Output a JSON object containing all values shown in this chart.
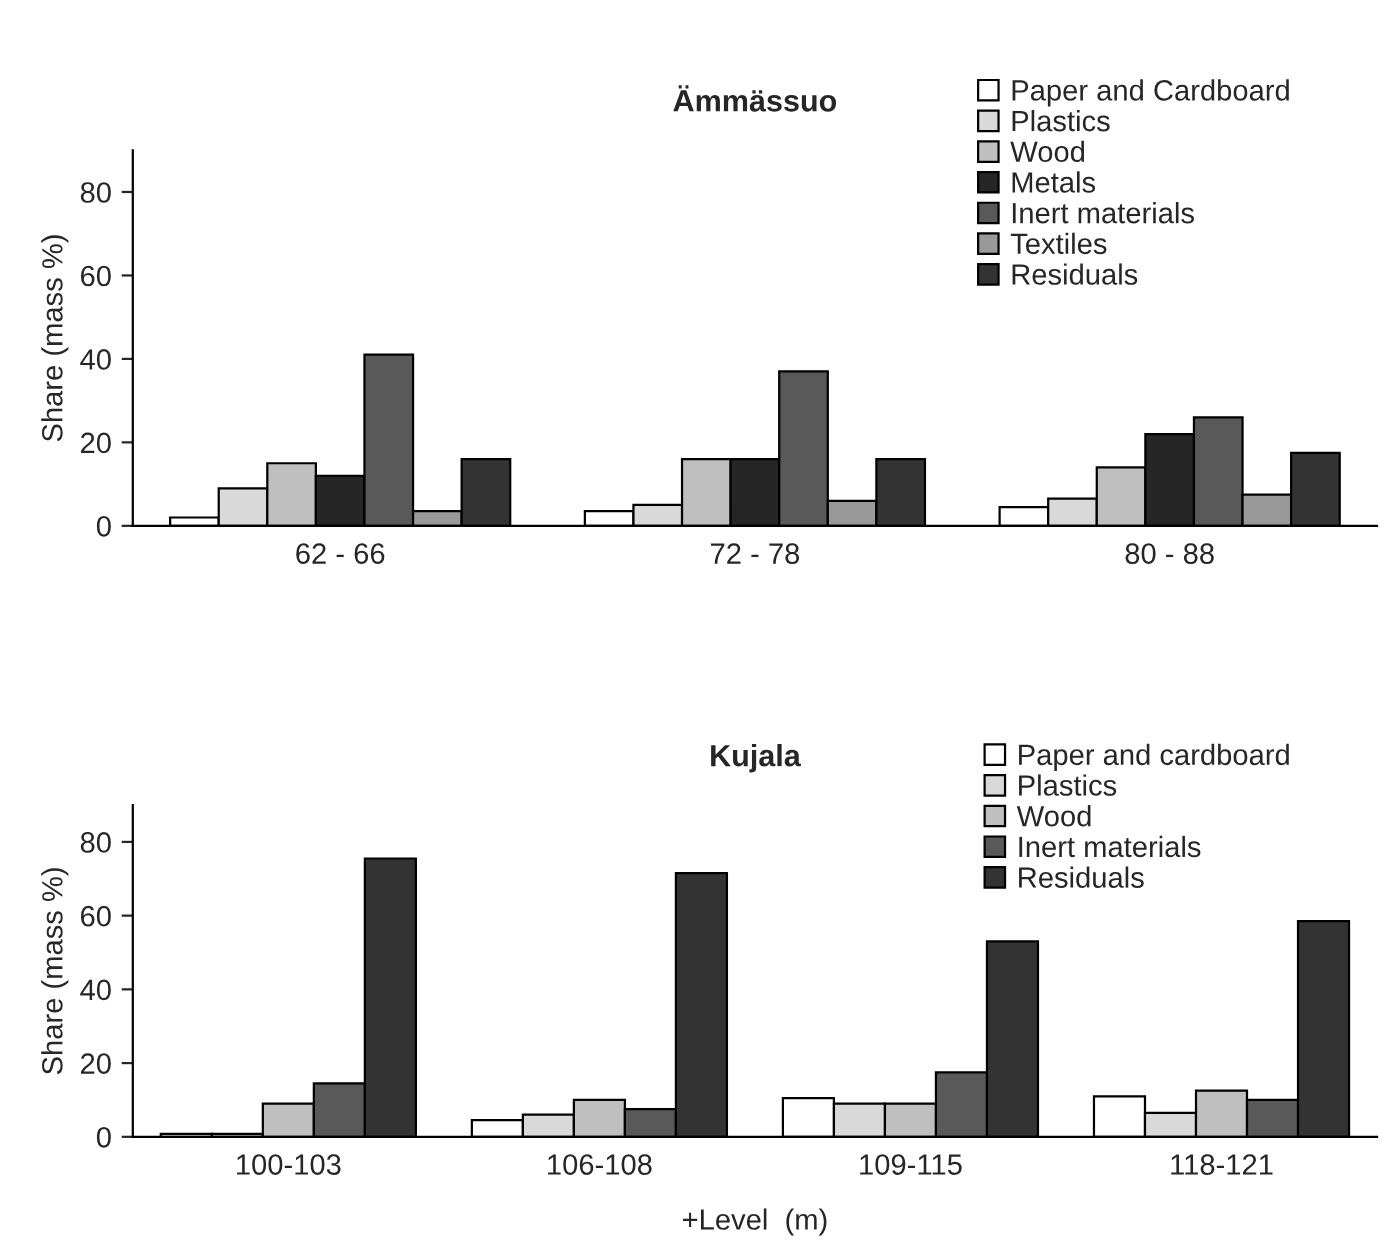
{
  "chart_data": [
    {
      "type": "bar",
      "title": "Ämmässuo",
      "ylabel": "Share (mass %)",
      "categories": [
        "62 - 66",
        "72 - 78",
        "80 - 88"
      ],
      "ylim": [
        0,
        90
      ],
      "yticks": [
        0,
        20,
        40,
        60,
        80
      ],
      "legend": "top right",
      "grid": false,
      "series": [
        {
          "name": "Paper and Cardboard",
          "color": "#ffffff",
          "values": [
            2,
            3.5,
            4.5
          ]
        },
        {
          "name": "Plastics",
          "color": "#d9d9d9",
          "values": [
            9,
            5,
            6.5
          ]
        },
        {
          "name": "Wood",
          "color": "#bfbfbf",
          "values": [
            15,
            16,
            14
          ]
        },
        {
          "name": "Metals",
          "color": "#262626",
          "values": [
            12,
            16,
            22
          ]
        },
        {
          "name": "Inert materials",
          "color": "#595959",
          "values": [
            41,
            37,
            26
          ]
        },
        {
          "name": "Textiles",
          "color": "#999999",
          "values": [
            3.5,
            6,
            7.5
          ]
        },
        {
          "name": "Residuals",
          "color": "#333333",
          "values": [
            16,
            16,
            17.5
          ]
        }
      ]
    },
    {
      "type": "bar",
      "title": "Kujala",
      "ylabel": "Share (mass %)",
      "xlabel": "+Level  (m)",
      "categories": [
        "100-103",
        "106-108",
        "109-115",
        "118-121"
      ],
      "ylim": [
        0,
        90
      ],
      "yticks": [
        0,
        20,
        40,
        60,
        80
      ],
      "legend": "top right",
      "grid": false,
      "series": [
        {
          "name": "Paper and cardboard",
          "color": "#ffffff",
          "values": [
            0.8,
            4.5,
            10.5,
            11
          ]
        },
        {
          "name": "Plastics",
          "color": "#d9d9d9",
          "values": [
            0.8,
            6,
            9,
            6.5
          ]
        },
        {
          "name": "Wood",
          "color": "#bfbfbf",
          "values": [
            9,
            10,
            9,
            12.5
          ]
        },
        {
          "name": "Inert materials",
          "color": "#595959",
          "values": [
            14.5,
            7.5,
            17.5,
            10
          ]
        },
        {
          "name": "Residuals",
          "color": "#333333",
          "values": [
            75.5,
            71.5,
            53,
            58.5
          ]
        }
      ]
    }
  ]
}
